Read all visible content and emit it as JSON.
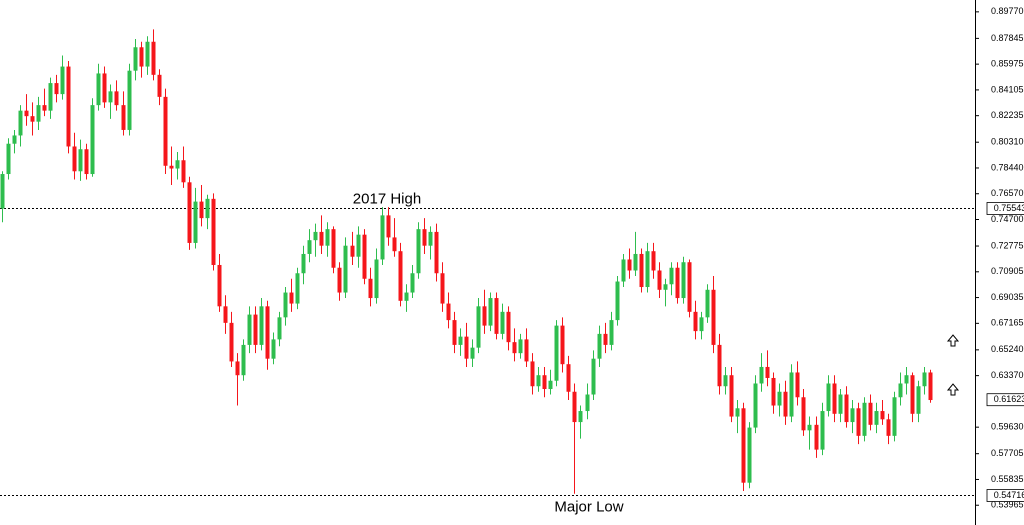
{
  "chart_data": {
    "type": "candlestick",
    "up_color": "#2ebd4e",
    "down_color": "#f5161b",
    "ylim": [
      0.5253,
      0.9063
    ],
    "yticks": [
      {
        "value": 0.8977,
        "label": "0.89770"
      },
      0.87845,
      0.85975,
      0.84105,
      0.82235,
      {
        "value": 0.8031,
        "label": "0.80310"
      },
      {
        "value": 0.7844,
        "label": "0.78440"
      },
      {
        "value": 0.7657,
        "label": "0.76570"
      },
      {
        "value": 0.747,
        "label": "0.74700"
      },
      0.72775,
      0.70905,
      0.69035,
      0.67165,
      {
        "value": 0.6524,
        "label": "0.65240"
      },
      {
        "value": 0.6337,
        "label": "0.63370"
      },
      {
        "value": 0.5963,
        "label": "0.59630"
      },
      0.57705,
      0.55835,
      0.53965
    ],
    "levels": [
      {
        "value": 0.75543,
        "label": "2017 High"
      },
      {
        "value": 0.54716,
        "label": "Major Low"
      }
    ],
    "last_price": 0.61623,
    "candles": [
      [
        0.755,
        0.782,
        0.745,
        0.78
      ],
      [
        0.78,
        0.806,
        0.776,
        0.802
      ],
      [
        0.802,
        0.812,
        0.795,
        0.808
      ],
      [
        0.808,
        0.83,
        0.8,
        0.826
      ],
      [
        0.826,
        0.838,
        0.815,
        0.822
      ],
      [
        0.822,
        0.832,
        0.808,
        0.818
      ],
      [
        0.818,
        0.836,
        0.812,
        0.83
      ],
      [
        0.83,
        0.842,
        0.822,
        0.826
      ],
      [
        0.826,
        0.85,
        0.82,
        0.846
      ],
      [
        0.846,
        0.852,
        0.832,
        0.838
      ],
      [
        0.838,
        0.866,
        0.834,
        0.858
      ],
      [
        0.858,
        0.862,
        0.795,
        0.8
      ],
      [
        0.8,
        0.81,
        0.776,
        0.782
      ],
      [
        0.782,
        0.805,
        0.775,
        0.798
      ],
      [
        0.798,
        0.802,
        0.776,
        0.78
      ],
      [
        0.78,
        0.835,
        0.778,
        0.83
      ],
      [
        0.83,
        0.86,
        0.826,
        0.853
      ],
      [
        0.853,
        0.858,
        0.828,
        0.832
      ],
      [
        0.832,
        0.845,
        0.82,
        0.84
      ],
      [
        0.84,
        0.848,
        0.826,
        0.83
      ],
      [
        0.83,
        0.84,
        0.808,
        0.812
      ],
      [
        0.812,
        0.86,
        0.808,
        0.855
      ],
      [
        0.855,
        0.878,
        0.848,
        0.872
      ],
      [
        0.872,
        0.876,
        0.85,
        0.858
      ],
      [
        0.858,
        0.88,
        0.852,
        0.876
      ],
      [
        0.876,
        0.885,
        0.848,
        0.852
      ],
      [
        0.852,
        0.856,
        0.83,
        0.836
      ],
      [
        0.836,
        0.842,
        0.78,
        0.786
      ],
      [
        0.786,
        0.8,
        0.772,
        0.784
      ],
      [
        0.784,
        0.796,
        0.776,
        0.79
      ],
      [
        0.79,
        0.8,
        0.77,
        0.774
      ],
      [
        0.774,
        0.778,
        0.725,
        0.73
      ],
      [
        0.73,
        0.77,
        0.726,
        0.76
      ],
      [
        0.76,
        0.772,
        0.742,
        0.748
      ],
      [
        0.748,
        0.765,
        0.74,
        0.762
      ],
      [
        0.762,
        0.766,
        0.71,
        0.714
      ],
      [
        0.714,
        0.722,
        0.68,
        0.684
      ],
      [
        0.684,
        0.692,
        0.664,
        0.672
      ],
      [
        0.672,
        0.68,
        0.64,
        0.644
      ],
      [
        0.644,
        0.65,
        0.612,
        0.634
      ],
      [
        0.634,
        0.66,
        0.63,
        0.656
      ],
      [
        0.656,
        0.684,
        0.65,
        0.678
      ],
      [
        0.678,
        0.684,
        0.65,
        0.656
      ],
      [
        0.656,
        0.69,
        0.652,
        0.684
      ],
      [
        0.684,
        0.688,
        0.638,
        0.646
      ],
      [
        0.646,
        0.665,
        0.642,
        0.66
      ],
      [
        0.66,
        0.68,
        0.655,
        0.676
      ],
      [
        0.676,
        0.698,
        0.67,
        0.694
      ],
      [
        0.694,
        0.704,
        0.68,
        0.686
      ],
      [
        0.686,
        0.712,
        0.682,
        0.708
      ],
      [
        0.708,
        0.728,
        0.7,
        0.722
      ],
      [
        0.722,
        0.74,
        0.716,
        0.732
      ],
      [
        0.732,
        0.744,
        0.72,
        0.738
      ],
      [
        0.738,
        0.75,
        0.722,
        0.728
      ],
      [
        0.728,
        0.745,
        0.72,
        0.74
      ],
      [
        0.74,
        0.742,
        0.708,
        0.712
      ],
      [
        0.712,
        0.716,
        0.688,
        0.694
      ],
      [
        0.694,
        0.734,
        0.69,
        0.728
      ],
      [
        0.728,
        0.738,
        0.714,
        0.72
      ],
      [
        0.72,
        0.742,
        0.712,
        0.736
      ],
      [
        0.736,
        0.74,
        0.7,
        0.704
      ],
      [
        0.704,
        0.712,
        0.684,
        0.69
      ],
      [
        0.69,
        0.726,
        0.686,
        0.718
      ],
      [
        0.718,
        0.756,
        0.714,
        0.75
      ],
      [
        0.75,
        0.756,
        0.728,
        0.734
      ],
      [
        0.734,
        0.748,
        0.72,
        0.724
      ],
      [
        0.724,
        0.73,
        0.684,
        0.688
      ],
      [
        0.688,
        0.7,
        0.68,
        0.694
      ],
      [
        0.694,
        0.714,
        0.69,
        0.708
      ],
      [
        0.708,
        0.745,
        0.704,
        0.74
      ],
      [
        0.74,
        0.748,
        0.722,
        0.728
      ],
      [
        0.728,
        0.742,
        0.718,
        0.738
      ],
      [
        0.738,
        0.744,
        0.702,
        0.708
      ],
      [
        0.708,
        0.716,
        0.68,
        0.686
      ],
      [
        0.686,
        0.694,
        0.668,
        0.674
      ],
      [
        0.674,
        0.68,
        0.65,
        0.656
      ],
      [
        0.656,
        0.668,
        0.648,
        0.662
      ],
      [
        0.662,
        0.672,
        0.64,
        0.646
      ],
      [
        0.646,
        0.66,
        0.64,
        0.654
      ],
      [
        0.654,
        0.69,
        0.65,
        0.684
      ],
      [
        0.684,
        0.696,
        0.664,
        0.67
      ],
      [
        0.67,
        0.694,
        0.666,
        0.69
      ],
      [
        0.69,
        0.694,
        0.66,
        0.664
      ],
      [
        0.664,
        0.686,
        0.66,
        0.68
      ],
      [
        0.68,
        0.684,
        0.652,
        0.658
      ],
      [
        0.658,
        0.668,
        0.644,
        0.65
      ],
      [
        0.65,
        0.664,
        0.646,
        0.66
      ],
      [
        0.66,
        0.668,
        0.64,
        0.644
      ],
      [
        0.644,
        0.65,
        0.62,
        0.626
      ],
      [
        0.626,
        0.64,
        0.622,
        0.634
      ],
      [
        0.634,
        0.64,
        0.618,
        0.624
      ],
      [
        0.624,
        0.638,
        0.62,
        0.63
      ],
      [
        0.63,
        0.674,
        0.626,
        0.67
      ],
      [
        0.67,
        0.676,
        0.636,
        0.642
      ],
      [
        0.642,
        0.648,
        0.616,
        0.622
      ],
      [
        0.622,
        0.628,
        0.548,
        0.6
      ],
      [
        0.6,
        0.612,
        0.588,
        0.608
      ],
      [
        0.608,
        0.628,
        0.602,
        0.62
      ],
      [
        0.62,
        0.652,
        0.616,
        0.646
      ],
      [
        0.646,
        0.67,
        0.64,
        0.664
      ],
      [
        0.664,
        0.672,
        0.65,
        0.656
      ],
      [
        0.656,
        0.68,
        0.652,
        0.674
      ],
      [
        0.674,
        0.706,
        0.67,
        0.702
      ],
      [
        0.702,
        0.722,
        0.698,
        0.718
      ],
      [
        0.718,
        0.726,
        0.704,
        0.71
      ],
      [
        0.71,
        0.738,
        0.706,
        0.722
      ],
      [
        0.722,
        0.726,
        0.694,
        0.698
      ],
      [
        0.698,
        0.73,
        0.694,
        0.724
      ],
      [
        0.724,
        0.73,
        0.704,
        0.71
      ],
      [
        0.71,
        0.716,
        0.69,
        0.696
      ],
      [
        0.696,
        0.704,
        0.684,
        0.7
      ],
      [
        0.7,
        0.716,
        0.692,
        0.712
      ],
      [
        0.712,
        0.716,
        0.686,
        0.69
      ],
      [
        0.69,
        0.72,
        0.686,
        0.716
      ],
      [
        0.716,
        0.718,
        0.676,
        0.68
      ],
      [
        0.68,
        0.688,
        0.66,
        0.666
      ],
      [
        0.666,
        0.68,
        0.66,
        0.676
      ],
      [
        0.676,
        0.7,
        0.672,
        0.696
      ],
      [
        0.696,
        0.706,
        0.65,
        0.656
      ],
      [
        0.656,
        0.664,
        0.62,
        0.626
      ],
      [
        0.626,
        0.64,
        0.62,
        0.634
      ],
      [
        0.634,
        0.64,
        0.6,
        0.604
      ],
      [
        0.604,
        0.616,
        0.592,
        0.61
      ],
      [
        0.61,
        0.614,
        0.55,
        0.556
      ],
      [
        0.556,
        0.6,
        0.552,
        0.596
      ],
      [
        0.596,
        0.634,
        0.592,
        0.628
      ],
      [
        0.628,
        0.65,
        0.622,
        0.64
      ],
      [
        0.64,
        0.652,
        0.626,
        0.632
      ],
      [
        0.632,
        0.636,
        0.606,
        0.612
      ],
      [
        0.612,
        0.628,
        0.604,
        0.622
      ],
      [
        0.622,
        0.63,
        0.598,
        0.604
      ],
      [
        0.604,
        0.642,
        0.6,
        0.636
      ],
      [
        0.636,
        0.644,
        0.612,
        0.618
      ],
      [
        0.618,
        0.624,
        0.59,
        0.594
      ],
      [
        0.594,
        0.604,
        0.58,
        0.598
      ],
      [
        0.598,
        0.604,
        0.574,
        0.58
      ],
      [
        0.58,
        0.614,
        0.576,
        0.608
      ],
      [
        0.608,
        0.634,
        0.604,
        0.628
      ],
      [
        0.628,
        0.634,
        0.6,
        0.606
      ],
      [
        0.606,
        0.624,
        0.6,
        0.62
      ],
      [
        0.62,
        0.626,
        0.596,
        0.6
      ],
      [
        0.6,
        0.616,
        0.592,
        0.61
      ],
      [
        0.61,
        0.614,
        0.584,
        0.59
      ],
      [
        0.59,
        0.618,
        0.586,
        0.614
      ],
      [
        0.614,
        0.62,
        0.594,
        0.598
      ],
      [
        0.598,
        0.614,
        0.592,
        0.608
      ],
      [
        0.608,
        0.616,
        0.598,
        0.602
      ],
      [
        0.602,
        0.606,
        0.584,
        0.59
      ],
      [
        0.59,
        0.622,
        0.586,
        0.618
      ],
      [
        0.618,
        0.636,
        0.612,
        0.628
      ],
      [
        0.628,
        0.64,
        0.62,
        0.634
      ],
      [
        0.634,
        0.636,
        0.6,
        0.606
      ],
      [
        0.606,
        0.63,
        0.6,
        0.626
      ],
      [
        0.626,
        0.64,
        0.62,
        0.636
      ],
      [
        0.636,
        0.638,
        0.614,
        0.616
      ]
    ]
  }
}
